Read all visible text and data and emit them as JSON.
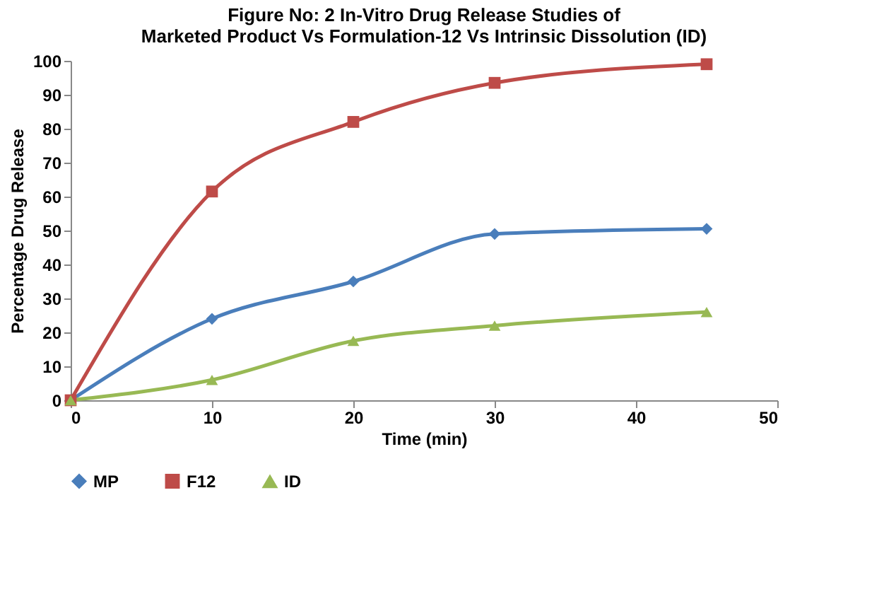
{
  "chart_data": {
    "type": "line",
    "title": "Figure No: 2 In-Vitro Drug Release Studies of\nMarketed Product Vs Formulation-12  Vs Intrinsic Dissolution (ID)",
    "xlabel": "Time (min)",
    "ylabel": "Percentage  Drug  Release",
    "x": [
      0,
      10,
      20,
      30,
      45
    ],
    "series": [
      {
        "name": "MP",
        "color": "#4a7ebb",
        "marker": "diamond",
        "values": [
          0,
          24,
          35,
          49,
          50.5
        ]
      },
      {
        "name": "F12",
        "color": "#be4b48",
        "marker": "square",
        "values": [
          0,
          61.5,
          82,
          93.5,
          99
        ]
      },
      {
        "name": "ID",
        "color": "#98b954",
        "marker": "triangle",
        "values": [
          0,
          6,
          17.5,
          22,
          26
        ]
      }
    ],
    "xlim": [
      0,
      50
    ],
    "xticks": [
      0,
      10,
      20,
      30,
      40,
      50
    ],
    "ylim": [
      0,
      100
    ],
    "yticks": [
      0,
      10,
      20,
      30,
      40,
      50,
      60,
      70,
      80,
      90,
      100
    ],
    "grid": false,
    "legend": "bottom",
    "line_style": "solid"
  }
}
